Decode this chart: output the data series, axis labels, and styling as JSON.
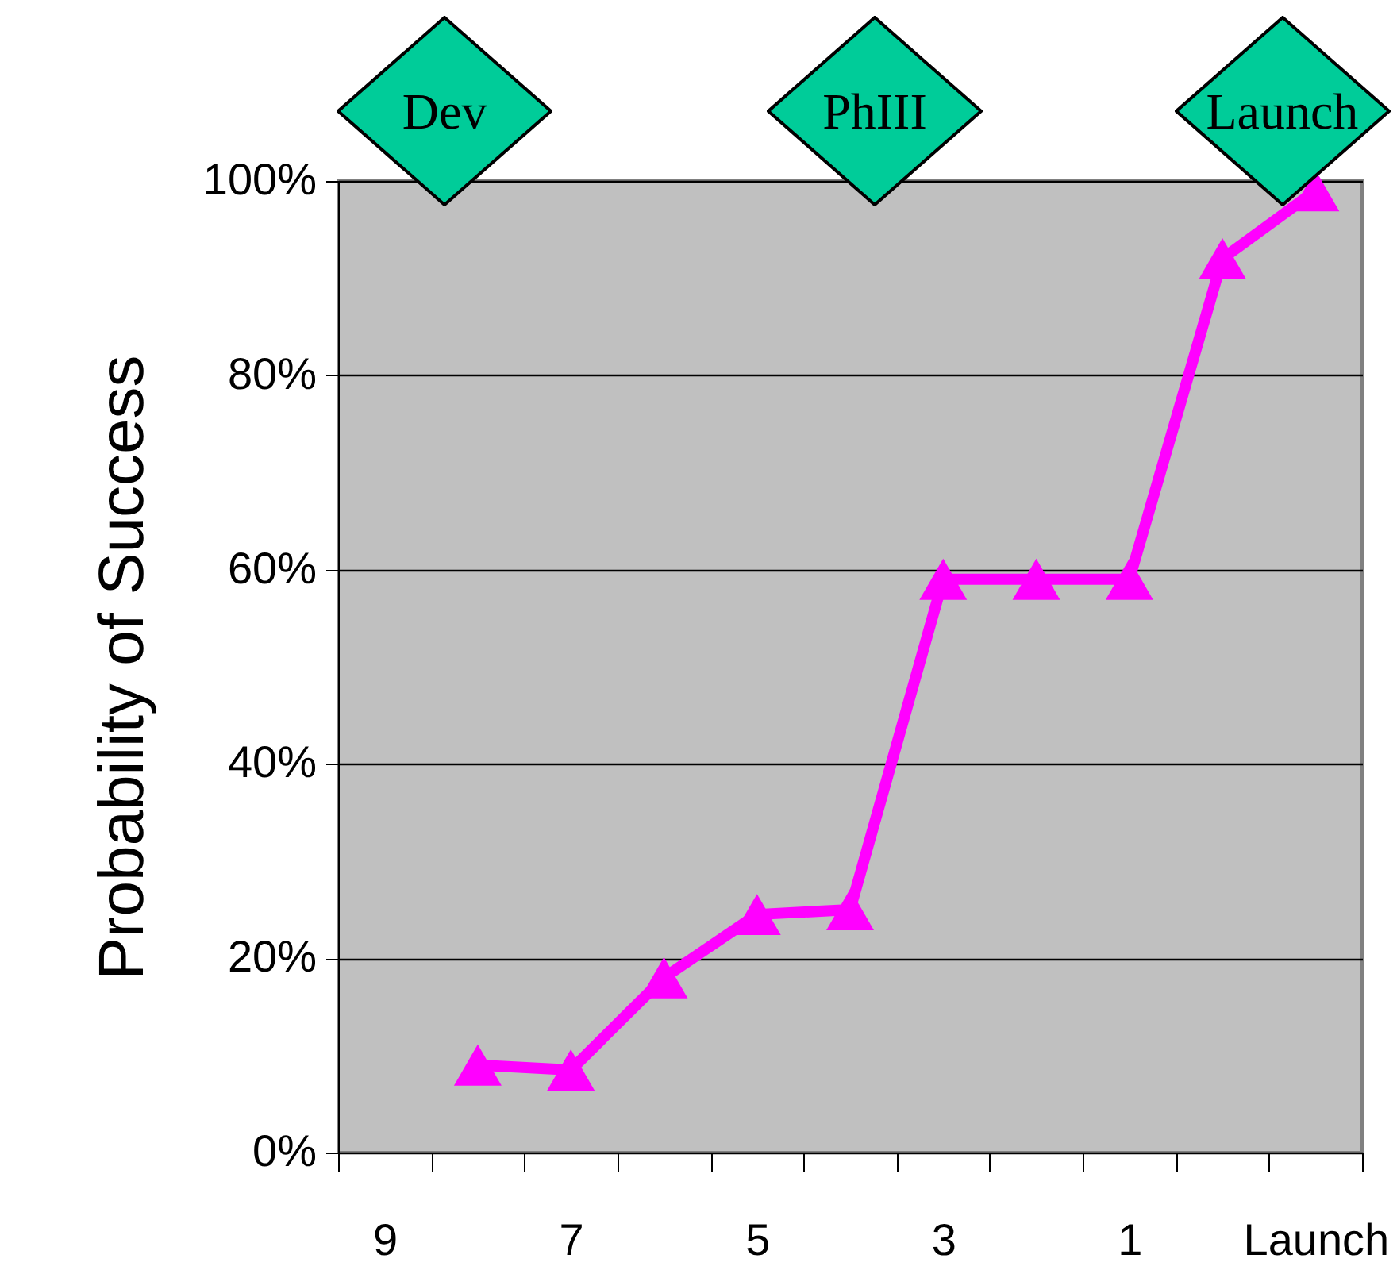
{
  "chart_data": {
    "type": "line",
    "ylabel": "Probability of Success",
    "categories": [
      "9",
      null,
      "7",
      null,
      "5",
      null,
      "3",
      null,
      "1",
      null,
      "Launch"
    ],
    "values": [
      null,
      9,
      8.5,
      18,
      24.5,
      25,
      59,
      59,
      59,
      92,
      99
    ],
    "color": "#ff00ff",
    "marker": "triangle",
    "line_style": "solid",
    "ylim": [
      0,
      100
    ],
    "yticks": [
      {
        "value": 0,
        "label": "0%"
      },
      {
        "value": 20,
        "label": "20%"
      },
      {
        "value": 40,
        "label": "40%"
      },
      {
        "value": 60,
        "label": "60%"
      },
      {
        "value": 80,
        "label": "80%"
      },
      {
        "value": 100,
        "label": "100%"
      }
    ],
    "grid": "y",
    "annotations": [
      "Dev",
      "PhIII",
      "Launch"
    ]
  }
}
